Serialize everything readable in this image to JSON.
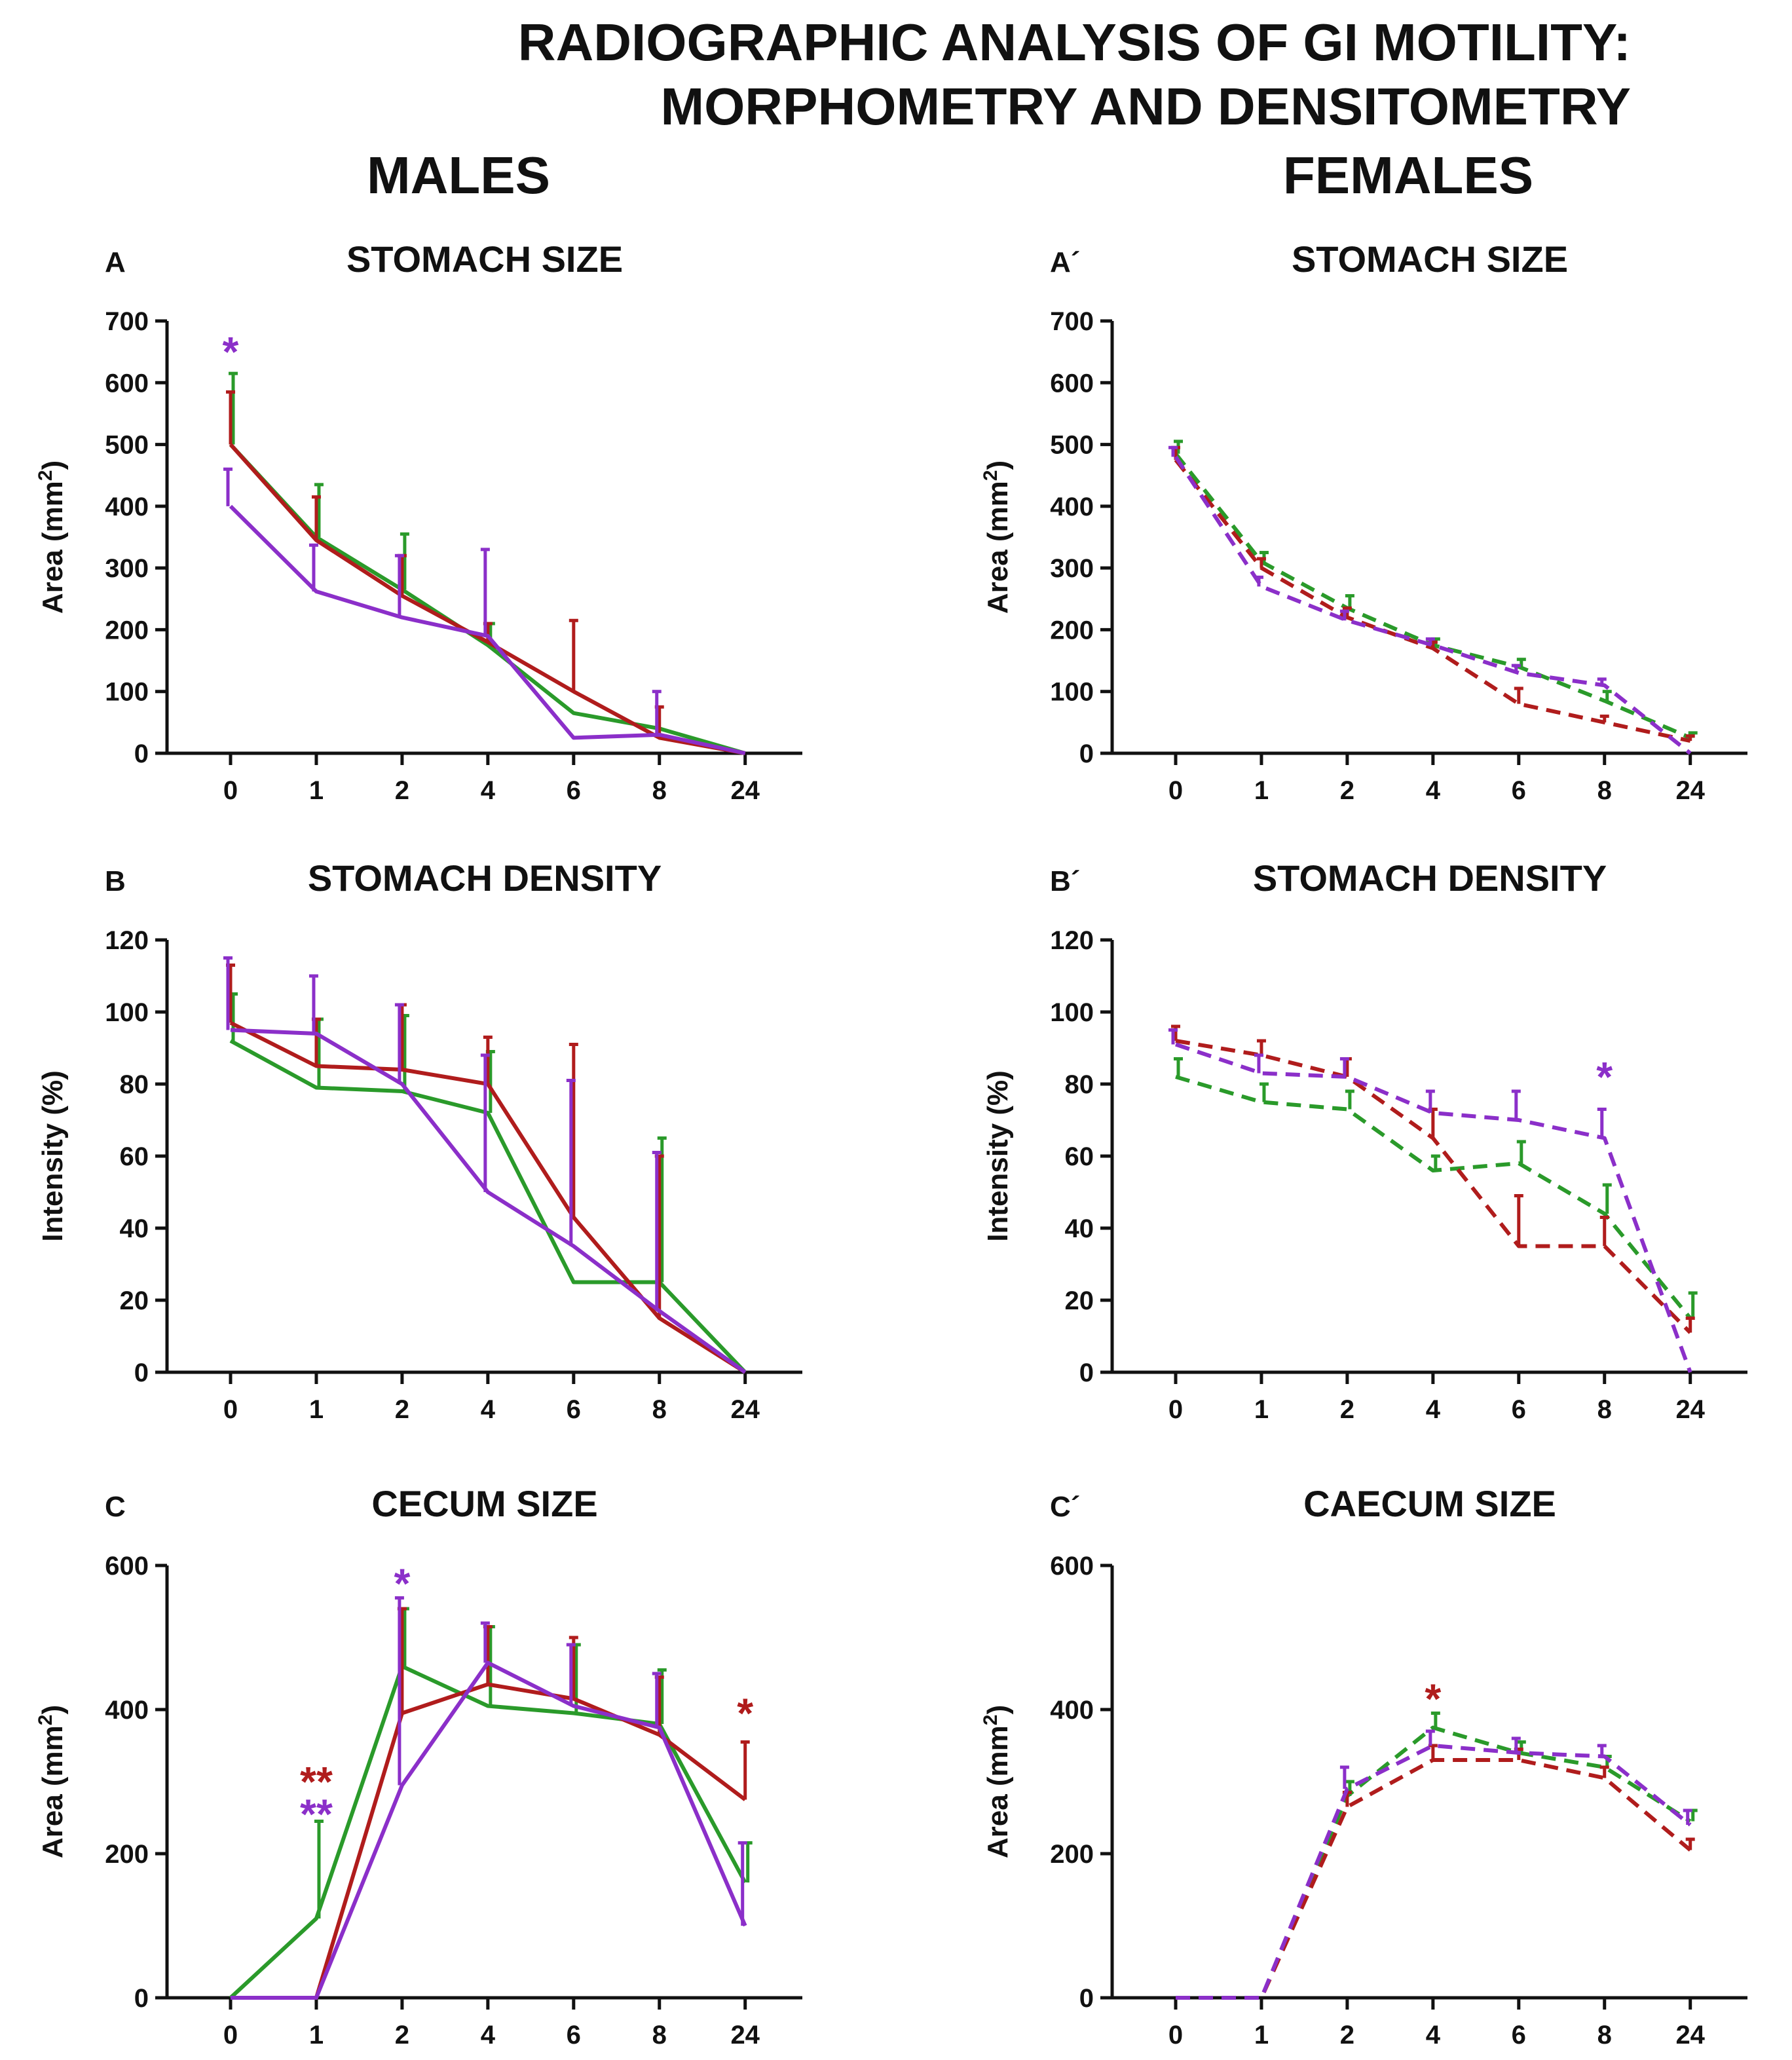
{
  "figure": {
    "title_line1": "RADIOGRAPHIC ANALYSIS OF GI MOTILITY:",
    "title_line2": "MORPHOMETRY AND DENSITOMETRY",
    "column_left": "MALES",
    "column_right": "FEMALES"
  },
  "colors": {
    "green": "#2a9a2a",
    "red": "#b01c1c",
    "purple": "#8b2fc9",
    "axis": "#111111"
  },
  "chart_data": [
    {
      "id": "A",
      "type": "line",
      "letter": "A",
      "title": "STOMACH SIZE",
      "ylabel_main": "Area (mm",
      "ylabel_sup": "2",
      "ylabel_tail": ")",
      "categories": [
        "0",
        "1",
        "2",
        "4",
        "6",
        "8",
        "24"
      ],
      "ylim": [
        0,
        700
      ],
      "yticks": [
        0,
        100,
        200,
        300,
        400,
        500,
        600,
        700
      ],
      "dashed": false,
      "series": [
        {
          "name": "green",
          "values": [
            500,
            350,
            265,
            175,
            65,
            40,
            0
          ],
          "errors": [
            115,
            85,
            90,
            35,
            0,
            0,
            0
          ]
        },
        {
          "name": "red",
          "values": [
            500,
            345,
            255,
            180,
            100,
            25,
            0
          ],
          "errors": [
            85,
            70,
            65,
            30,
            115,
            50,
            0
          ]
        },
        {
          "name": "purple",
          "values": [
            400,
            262,
            220,
            190,
            25,
            30,
            0
          ],
          "errors": [
            60,
            75,
            100,
            140,
            0,
            70,
            0
          ]
        }
      ],
      "annotations": [
        {
          "text": "*",
          "color": "purple",
          "x_index": 0,
          "y": 650
        }
      ]
    },
    {
      "id": "A2",
      "type": "line",
      "letter": "A´",
      "title": "STOMACH SIZE",
      "ylabel_main": "Area (mm",
      "ylabel_sup": "2",
      "ylabel_tail": ")",
      "categories": [
        "0",
        "1",
        "2",
        "4",
        "6",
        "8",
        "24"
      ],
      "ylim": [
        0,
        700
      ],
      "yticks": [
        0,
        100,
        200,
        300,
        400,
        500,
        600,
        700
      ],
      "dashed": true,
      "series": [
        {
          "name": "green",
          "values": [
            485,
            310,
            235,
            175,
            140,
            85,
            25
          ],
          "errors": [
            20,
            15,
            20,
            10,
            12,
            15,
            8
          ]
        },
        {
          "name": "red",
          "values": [
            475,
            300,
            220,
            170,
            80,
            50,
            20
          ],
          "errors": [
            20,
            15,
            15,
            10,
            25,
            10,
            8
          ]
        },
        {
          "name": "purple",
          "values": [
            480,
            270,
            215,
            175,
            130,
            110,
            0
          ],
          "errors": [
            15,
            15,
            15,
            10,
            12,
            10,
            0
          ]
        }
      ],
      "annotations": []
    },
    {
      "id": "B",
      "type": "line",
      "letter": "B",
      "title": "STOMACH DENSITY",
      "ylabel_main": "Intensity (%)",
      "ylabel_sup": "",
      "ylabel_tail": "",
      "categories": [
        "0",
        "1",
        "2",
        "4",
        "6",
        "8",
        "24"
      ],
      "ylim": [
        0,
        120
      ],
      "yticks": [
        0,
        20,
        40,
        60,
        80,
        100,
        120
      ],
      "dashed": false,
      "series": [
        {
          "name": "green",
          "values": [
            92,
            79,
            78,
            72,
            25,
            25,
            0
          ],
          "errors": [
            13,
            19,
            21,
            17,
            0,
            40,
            0
          ]
        },
        {
          "name": "red",
          "values": [
            97,
            85,
            84,
            80,
            43,
            15,
            0
          ],
          "errors": [
            16,
            13,
            18,
            13,
            48,
            45,
            0
          ]
        },
        {
          "name": "purple",
          "values": [
            95,
            94,
            80,
            50,
            35,
            17,
            0
          ],
          "errors": [
            20,
            16,
            22,
            38,
            46,
            44,
            0
          ]
        }
      ],
      "annotations": []
    },
    {
      "id": "B2",
      "type": "line",
      "letter": "B´",
      "title": "STOMACH DENSITY",
      "ylabel_main": "Intensity (%)",
      "ylabel_sup": "",
      "ylabel_tail": "",
      "categories": [
        "0",
        "1",
        "2",
        "4",
        "6",
        "8",
        "24"
      ],
      "ylim": [
        0,
        120
      ],
      "yticks": [
        0,
        20,
        40,
        60,
        80,
        100,
        120
      ],
      "dashed": true,
      "series": [
        {
          "name": "green",
          "values": [
            82,
            75,
            73,
            56,
            58,
            44,
            15
          ],
          "errors": [
            5,
            5,
            5,
            4,
            6,
            8,
            7
          ]
        },
        {
          "name": "red",
          "values": [
            92,
            88,
            82,
            65,
            35,
            35,
            11
          ],
          "errors": [
            4,
            4,
            5,
            8,
            14,
            8,
            4
          ]
        },
        {
          "name": "purple",
          "values": [
            91,
            83,
            82,
            72,
            70,
            65,
            0
          ],
          "errors": [
            4,
            5,
            5,
            6,
            8,
            8,
            0
          ]
        }
      ],
      "annotations": [
        {
          "text": "*",
          "color": "purple",
          "x_index": 5,
          "y": 82
        }
      ]
    },
    {
      "id": "C",
      "type": "line",
      "letter": "C",
      "title": "CECUM SIZE",
      "ylabel_main": "Area (mm",
      "ylabel_sup": "2",
      "ylabel_tail": ")",
      "categories": [
        "0",
        "1",
        "2",
        "4",
        "6",
        "8",
        "24"
      ],
      "ylim": [
        0,
        600
      ],
      "yticks": [
        0,
        200,
        400,
        600
      ],
      "dashed": false,
      "series": [
        {
          "name": "green",
          "values": [
            0,
            110,
            460,
            405,
            395,
            380,
            160
          ],
          "errors": [
            0,
            135,
            80,
            110,
            95,
            75,
            55
          ]
        },
        {
          "name": "red",
          "values": [
            0,
            0,
            395,
            435,
            415,
            365,
            275
          ],
          "errors": [
            0,
            0,
            145,
            80,
            85,
            80,
            80
          ]
        },
        {
          "name": "purple",
          "values": [
            0,
            0,
            295,
            465,
            405,
            375,
            100
          ],
          "errors": [
            0,
            0,
            260,
            55,
            85,
            75,
            115
          ]
        }
      ],
      "annotations": [
        {
          "text": "**",
          "color": "red",
          "x_index": 1,
          "y": 300
        },
        {
          "text": "**",
          "color": "purple",
          "x_index": 1,
          "y": 255
        },
        {
          "text": "*",
          "color": "purple",
          "x_index": 2,
          "y": 575
        },
        {
          "text": "*",
          "color": "red",
          "x_index": 6,
          "y": 395
        }
      ]
    },
    {
      "id": "C2",
      "type": "line",
      "letter": "C´",
      "title": "CAECUM SIZE",
      "ylabel_main": "Area (mm",
      "ylabel_sup": "2",
      "ylabel_tail": ")",
      "categories": [
        "0",
        "1",
        "2",
        "4",
        "6",
        "8",
        "24"
      ],
      "ylim": [
        0,
        600
      ],
      "yticks": [
        0,
        200,
        400,
        600
      ],
      "dashed": true,
      "series": [
        {
          "name": "green",
          "values": [
            0,
            0,
            280,
            375,
            340,
            320,
            245
          ],
          "errors": [
            0,
            0,
            20,
            20,
            15,
            15,
            15
          ]
        },
        {
          "name": "red",
          "values": [
            0,
            0,
            265,
            330,
            330,
            305,
            205
          ],
          "errors": [
            0,
            0,
            20,
            20,
            15,
            15,
            15
          ]
        },
        {
          "name": "purple",
          "values": [
            0,
            0,
            290,
            350,
            340,
            335,
            240
          ],
          "errors": [
            0,
            0,
            30,
            20,
            20,
            15,
            20
          ]
        }
      ],
      "annotations": [
        {
          "text": "*",
          "color": "red",
          "x_index": 3,
          "y": 415
        }
      ]
    }
  ]
}
